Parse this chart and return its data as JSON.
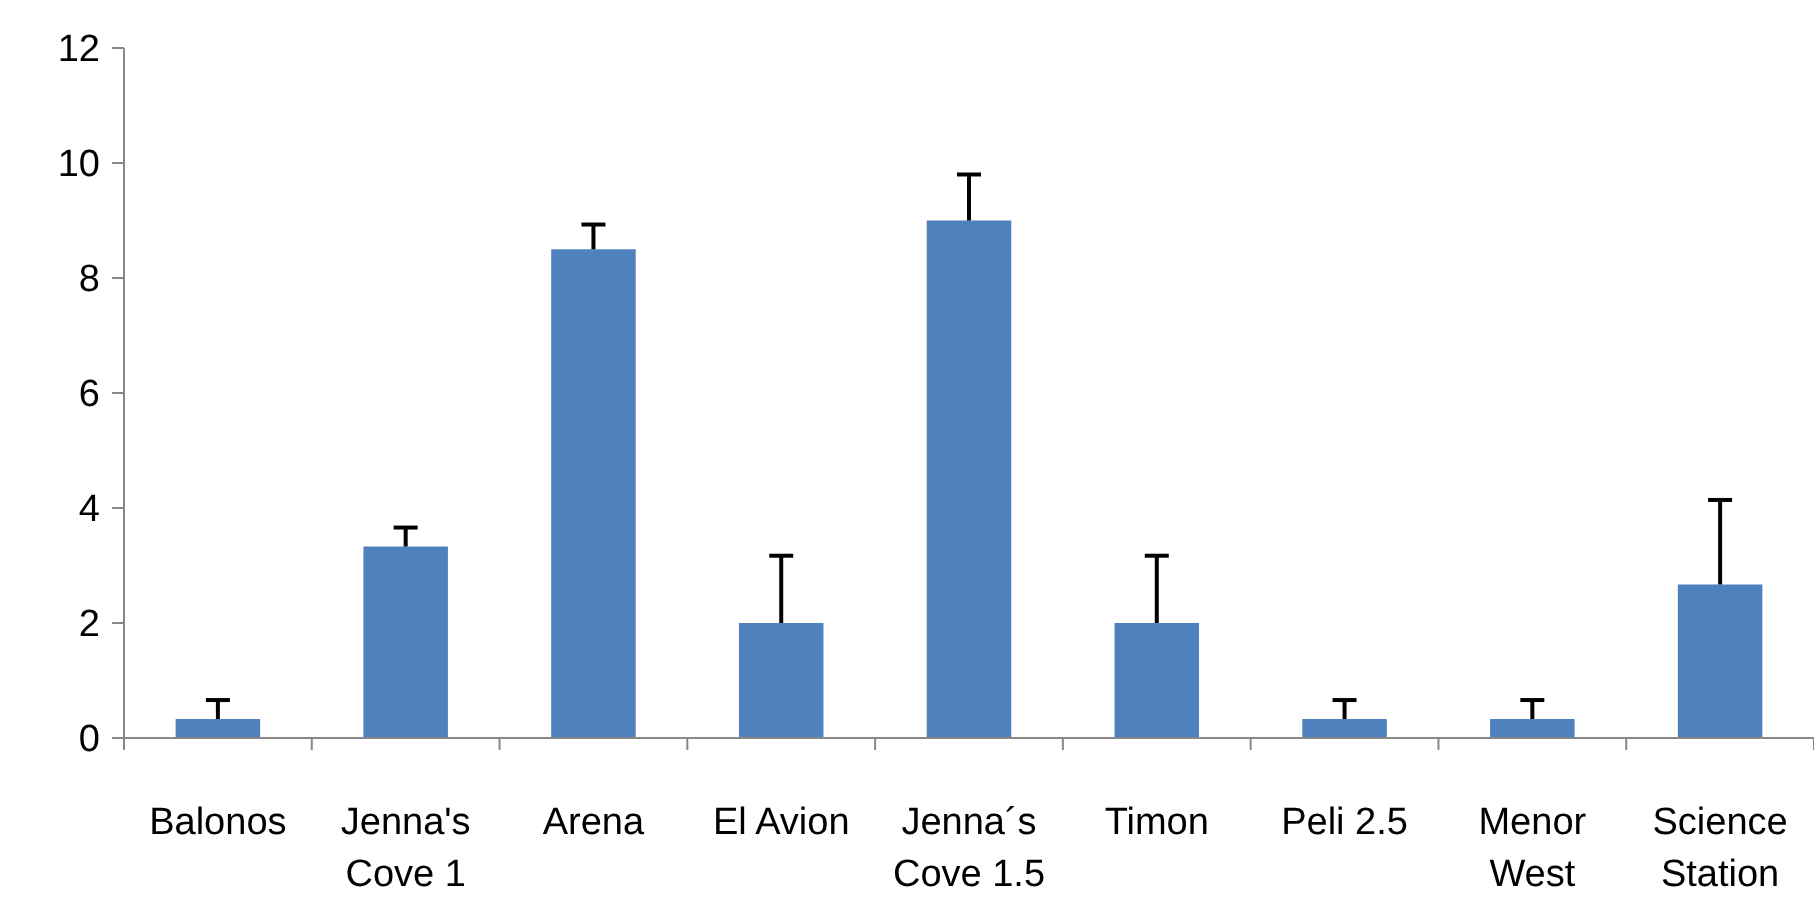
{
  "chart_data": {
    "type": "bar",
    "categories": [
      "Balonos",
      "Jenna's Cove 1",
      "Arena",
      "El Avion",
      "Jenna´s Cove 1.5",
      "Timon",
      "Peli 2.5",
      "Menor West",
      "Science Station"
    ],
    "values": [
      0.33,
      3.33,
      8.5,
      2,
      9,
      2,
      0.33,
      0.33,
      2.67
    ],
    "errors": [
      [
        0.33,
        0.66
      ],
      [
        3.33,
        3.66
      ],
      [
        8.5,
        8.93
      ],
      [
        2,
        3.17
      ],
      [
        9,
        9.8
      ],
      [
        2,
        3.17
      ],
      [
        0.33,
        0.66
      ],
      [
        0.33,
        0.66
      ],
      [
        2.67,
        4.14
      ]
    ],
    "color": "#4f81bd",
    "ylim": [
      0,
      12
    ],
    "yticks": [
      0,
      2,
      4,
      6,
      8,
      10,
      12
    ],
    "grid": false
  }
}
